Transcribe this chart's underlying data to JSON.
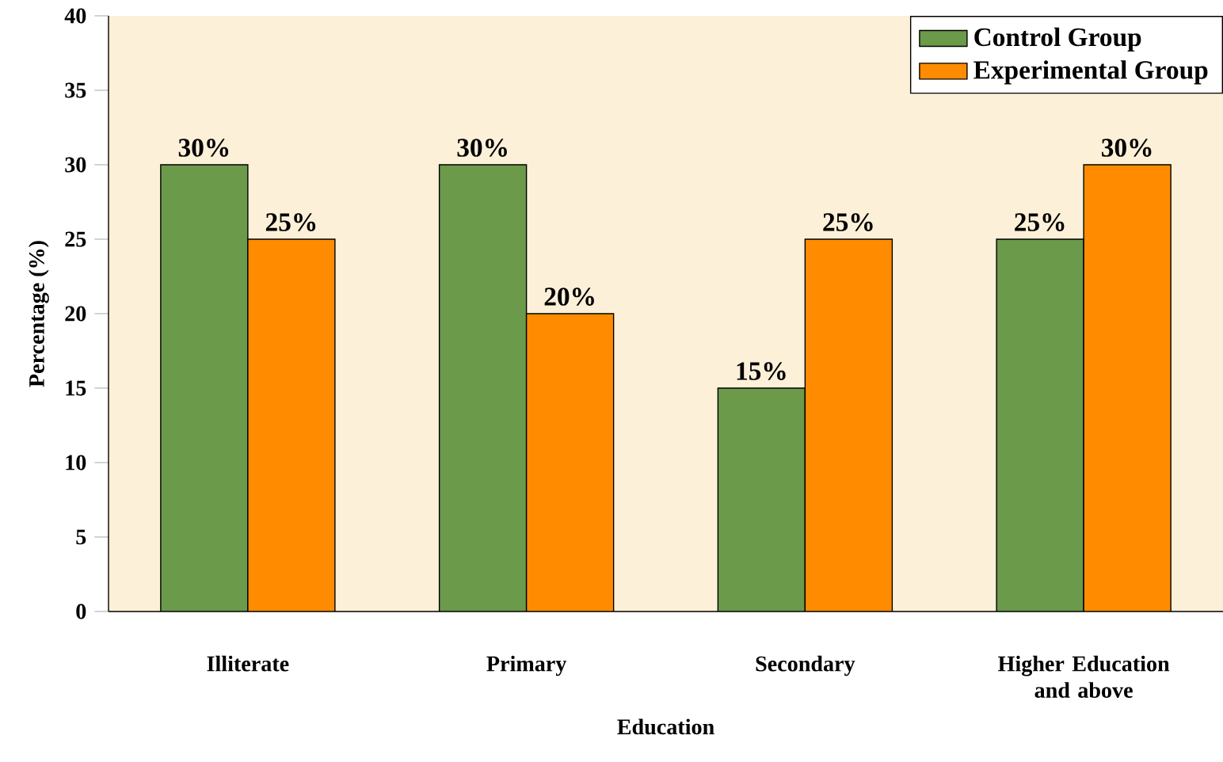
{
  "chart_data": {
    "type": "bar",
    "xlabel": "Education",
    "ylabel": "Percentage (%)",
    "categories": [
      "Illiterate",
      "Primary",
      "Secondary",
      "Higher Education and above"
    ],
    "series": [
      {
        "name": "Control Group",
        "color": "#6a9a4a",
        "values": [
          30,
          30,
          15,
          25
        ],
        "value_labels": [
          "30%",
          "30%",
          "15%",
          "25%"
        ]
      },
      {
        "name": "Experimental Group",
        "color": "#ff8c00",
        "values": [
          25,
          20,
          25,
          30
        ],
        "value_labels": [
          "25%",
          "20%",
          "25%",
          "30%"
        ]
      }
    ],
    "ylim": [
      0,
      40
    ],
    "yticks": [
      0,
      5,
      10,
      15,
      20,
      25,
      30,
      35,
      40
    ],
    "grid": false,
    "legend": "top right"
  }
}
